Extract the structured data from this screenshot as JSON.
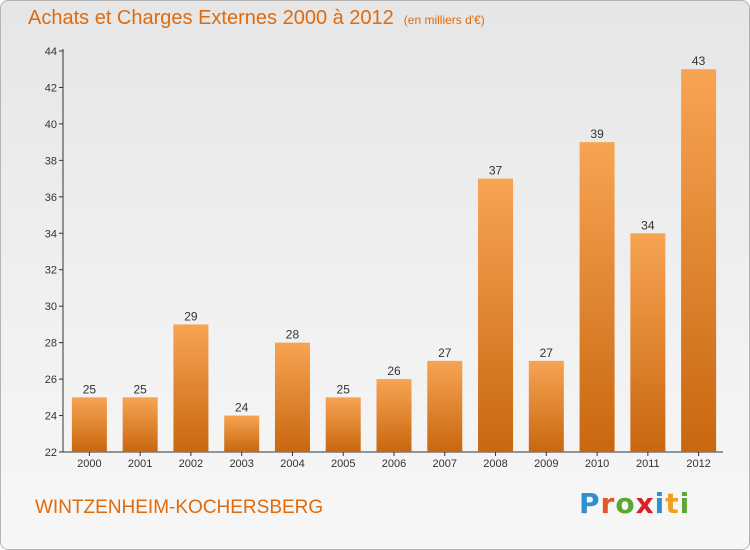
{
  "header": {
    "title": "Achats et Charges Externes 2000 à 2012",
    "subtitle": "(en milliers d'€)"
  },
  "footer": {
    "city": "WINTZENHEIM-KOCHERSBERG",
    "logo_letters": [
      "P",
      "r",
      "o",
      "x",
      "i",
      "t",
      "i"
    ],
    "logo_colors": [
      "#2f8fd1",
      "#e8542a",
      "#5aa832",
      "#d8202a",
      "#2f8fd1",
      "#f0a020",
      "#5aa832"
    ]
  },
  "colors": {
    "bar_light": "#f7a453",
    "bar_dark": "#c9670f",
    "text_accent": "#e06a0c"
  },
  "chart_data": {
    "type": "bar",
    "title": "Achats et Charges Externes 2000 à 2012",
    "subtitle": "(en milliers d'€)",
    "xlabel": "",
    "ylabel": "",
    "categories": [
      "2000",
      "2001",
      "2002",
      "2003",
      "2004",
      "2005",
      "2006",
      "2007",
      "2008",
      "2009",
      "2010",
      "2011",
      "2012"
    ],
    "values": [
      25,
      25,
      29,
      24,
      28,
      25,
      26,
      27,
      37,
      27,
      39,
      34,
      43
    ],
    "ylim": [
      22,
      44
    ],
    "yticks": [
      22,
      24,
      26,
      28,
      30,
      32,
      34,
      36,
      38,
      40,
      42,
      44
    ],
    "grid": false,
    "legend": "none"
  }
}
